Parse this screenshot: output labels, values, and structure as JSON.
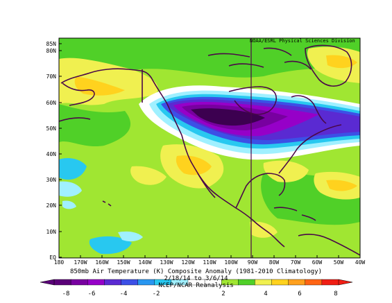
{
  "credit": "NOAA/ESRL Physical Sciences Division",
  "title": "850mb Air Temperature (K) Composite Anomaly (1981-2010 Climatology)",
  "date_range": "2/18/14 to 3/6/14",
  "source": "NCEP/NCAR Reanalysis",
  "map": {
    "lat_labels": [
      "85N",
      "80N",
      "70N",
      "60N",
      "50N",
      "40N",
      "30N",
      "20N",
      "10N",
      "EQ"
    ],
    "lon_labels": [
      "180",
      "170W",
      "160W",
      "150W",
      "140W",
      "130W",
      "120W",
      "110W",
      "100W",
      "90W",
      "80W",
      "70W",
      "60W",
      "50W",
      "40W"
    ]
  },
  "colorbar": {
    "ticks": [
      "-8",
      "-6",
      "-4",
      "-2",
      "2",
      "4",
      "6",
      "8"
    ],
    "colors": [
      "#5a0078",
      "#7800a0",
      "#9600c8",
      "#5a2ad2",
      "#3c50e6",
      "#2896f0",
      "#28c8f0",
      "#a0f0ff",
      "#ffffff",
      "#ffffff",
      "#a0e632",
      "#50d028",
      "#f0f050",
      "#ffd21e",
      "#ffa01e",
      "#ff6414",
      "#f01e14"
    ]
  },
  "anomaly_palette": {
    "strong_cold": "#3c0050",
    "cold": "#7800a0",
    "mild_cold": "#5a2ad2",
    "cool": "#3c50e6",
    "cool2": "#28c8f0",
    "near_zero": "#ffffff",
    "warm1": "#a0e632",
    "warm2": "#50d028",
    "warm3": "#f0f050",
    "warm4": "#ffd21e",
    "land_outline": "#4a0848"
  }
}
